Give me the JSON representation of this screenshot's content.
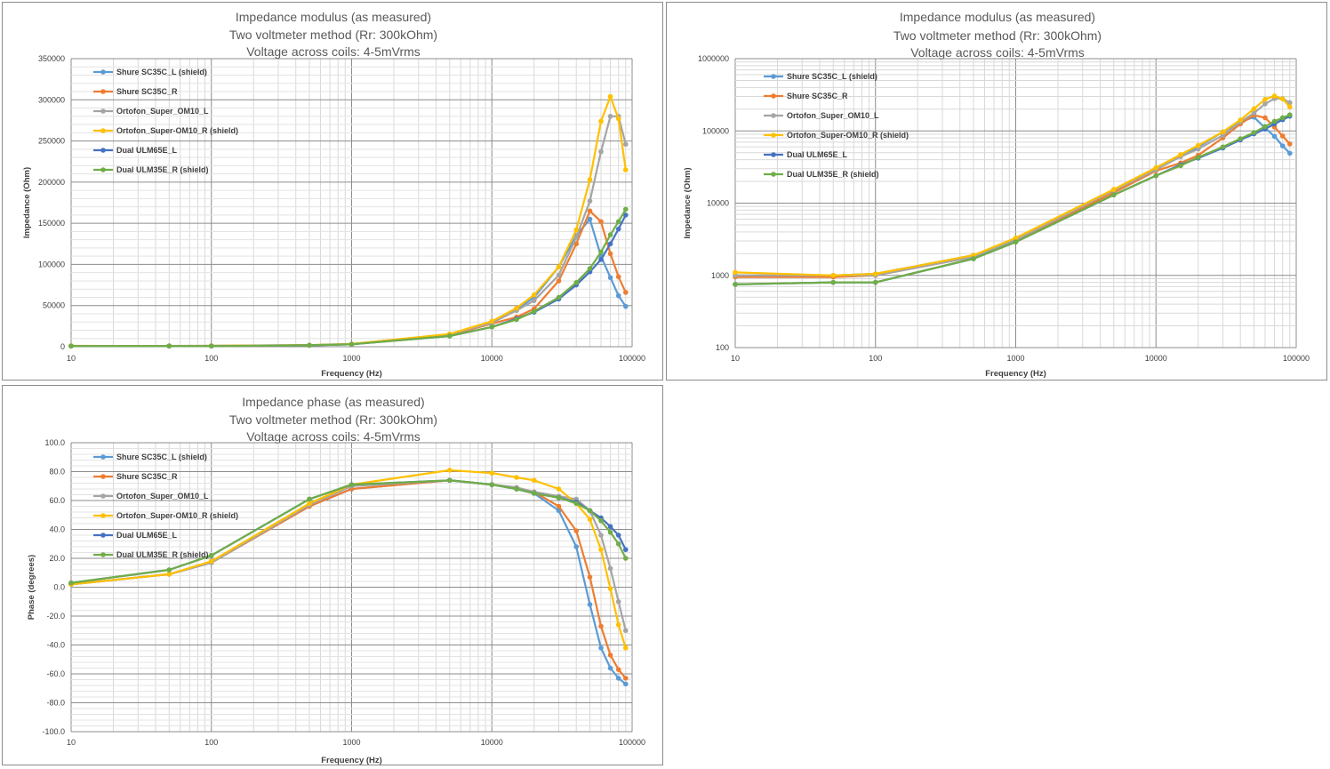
{
  "colors": {
    "Shure SC35C_L (shield)": "#5b9bd5",
    "Shure SC35C_R": "#ed7d31",
    "Ortofon_Super_OM10_L": "#a5a5a5",
    "Ortofon_Super-OM10_R (shield)": "#ffc000",
    "Dual ULM65E_L": "#4472c4",
    "Dual ULM35E_R (shield)": "#70ad47"
  },
  "chart_data": [
    {
      "type": "line",
      "title": [
        "Impedance modulus (as measured)",
        "Two voltmeter method (Rr: 300kOhm)",
        "Voltage across coils: 4-5mVrms"
      ],
      "xlabel": "Frequency (Hz)",
      "ylabel": "Impedance (Ohm)",
      "xscale": "log",
      "yscale": "linear",
      "xlim": [
        10,
        100000
      ],
      "ylim": [
        0,
        350000
      ],
      "xticks": [
        "10",
        "100",
        "1000",
        "10000",
        "100000"
      ],
      "yticks": [
        "0",
        "50000",
        "100000",
        "150000",
        "200000",
        "250000",
        "300000",
        "350000"
      ],
      "legend": "top-left",
      "grid": true,
      "x": [
        10,
        50,
        100,
        500,
        1000,
        5000,
        10000,
        15000,
        20000,
        30000,
        40000,
        50000,
        60000,
        70000,
        80000,
        90000
      ],
      "series": [
        {
          "name": "Shure SC35C_L (shield)",
          "values": [
            1000,
            1000,
            1050,
            1900,
            3200,
            15000,
            30000,
            45000,
            60000,
            97000,
            135000,
            155000,
            110000,
            84000,
            62000,
            49000
          ]
        },
        {
          "name": "Shure SC35C_R",
          "values": [
            950,
            950,
            1000,
            1800,
            3000,
            14000,
            28000,
            36000,
            46000,
            80000,
            125000,
            165000,
            152000,
            113000,
            85000,
            66000
          ]
        },
        {
          "name": "Ortofon_Super_OM10_L",
          "values": [
            1000,
            1000,
            1000,
            1800,
            3100,
            15000,
            29000,
            44000,
            56000,
            87000,
            133000,
            177000,
            237000,
            280000,
            280000,
            246000
          ]
        },
        {
          "name": "Ortofon_Super-OM10_R (shield)",
          "values": [
            1100,
            1000,
            1050,
            1900,
            3300,
            15500,
            31000,
            47000,
            63000,
            97000,
            142000,
            203000,
            274000,
            304000,
            277000,
            215000
          ]
        },
        {
          "name": "Dual ULM65E_L",
          "values": [
            750,
            800,
            800,
            1700,
            2900,
            13000,
            24000,
            34000,
            42000,
            58000,
            75000,
            91000,
            106000,
            125000,
            143000,
            160000
          ]
        },
        {
          "name": "Dual ULM35E_R (shield)",
          "values": [
            750,
            800,
            800,
            1700,
            2900,
            13000,
            24000,
            33000,
            43000,
            60000,
            78000,
            95000,
            115000,
            136000,
            152000,
            167000
          ]
        }
      ]
    },
    {
      "type": "line",
      "title": [
        "Impedance modulus (as measured)",
        "Two voltmeter method (Rr: 300kOhm)",
        "Voltage across coils: 4-5mVrms"
      ],
      "xlabel": "Frequency (Hz)",
      "ylabel": "Impedance (Ohm)",
      "xscale": "log",
      "yscale": "log",
      "xlim": [
        10,
        100000
      ],
      "ylim": [
        100,
        1000000
      ],
      "xticks": [
        "10",
        "100",
        "1000",
        "10000",
        "100000"
      ],
      "yticks": [
        "100",
        "1000",
        "10000",
        "100000",
        "1000000"
      ],
      "legend": "top-left",
      "grid": true,
      "x": [
        10,
        50,
        100,
        500,
        1000,
        5000,
        10000,
        15000,
        20000,
        30000,
        40000,
        50000,
        60000,
        70000,
        80000,
        90000
      ],
      "series": [
        {
          "name": "Shure SC35C_L (shield)",
          "values": [
            1000,
            1000,
            1050,
            1900,
            3200,
            15000,
            30000,
            45000,
            60000,
            97000,
            135000,
            155000,
            110000,
            84000,
            62000,
            49000
          ]
        },
        {
          "name": "Shure SC35C_R",
          "values": [
            950,
            950,
            1000,
            1800,
            3000,
            14000,
            28000,
            36000,
            46000,
            80000,
            125000,
            165000,
            152000,
            113000,
            85000,
            66000
          ]
        },
        {
          "name": "Ortofon_Super_OM10_L",
          "values": [
            1000,
            1000,
            1000,
            1800,
            3100,
            15000,
            29000,
            44000,
            56000,
            87000,
            133000,
            177000,
            237000,
            280000,
            280000,
            246000
          ]
        },
        {
          "name": "Ortofon_Super-OM10_R (shield)",
          "values": [
            1100,
            1000,
            1050,
            1900,
            3300,
            15500,
            31000,
            47000,
            63000,
            97000,
            142000,
            203000,
            274000,
            304000,
            277000,
            215000
          ]
        },
        {
          "name": "Dual ULM65E_L",
          "values": [
            750,
            800,
            800,
            1700,
            2900,
            13000,
            24000,
            34000,
            42000,
            58000,
            75000,
            91000,
            106000,
            125000,
            143000,
            160000
          ]
        },
        {
          "name": "Dual ULM35E_R (shield)",
          "values": [
            750,
            800,
            800,
            1700,
            2900,
            13000,
            24000,
            33000,
            43000,
            60000,
            78000,
            95000,
            115000,
            136000,
            152000,
            167000
          ]
        }
      ]
    },
    {
      "type": "line",
      "title": [
        "Impedance phase (as measured)",
        "Two voltmeter method (Rr: 300kOhm)",
        "Voltage across coils: 4-5mVrms"
      ],
      "xlabel": "Frequency (Hz)",
      "ylabel": "Phase (degrees)",
      "xscale": "log",
      "yscale": "linear",
      "xlim": [
        10,
        100000
      ],
      "ylim": [
        -100,
        100
      ],
      "xticks": [
        "10",
        "100",
        "1000",
        "10000",
        "100000"
      ],
      "yticks": [
        "-100.0",
        "-80.0",
        "-60.0",
        "-40.0",
        "-20.0",
        "0.0",
        "20.0",
        "40.0",
        "60.0",
        "80.0",
        "100.0"
      ],
      "legend": "top-left",
      "grid": true,
      "x": [
        10,
        50,
        100,
        500,
        1000,
        5000,
        10000,
        15000,
        20000,
        30000,
        40000,
        50000,
        60000,
        70000,
        80000,
        90000
      ],
      "series": [
        {
          "name": "Shure SC35C_L (shield)",
          "values": [
            2,
            9,
            17,
            56,
            68,
            74,
            71,
            68,
            65,
            53,
            28,
            -12,
            -42,
            -56,
            -63,
            -67
          ]
        },
        {
          "name": "Shure SC35C_R",
          "values": [
            2,
            9,
            17,
            56,
            68,
            74,
            71,
            69,
            66,
            56,
            39,
            7,
            -27,
            -47,
            -57,
            -63
          ]
        },
        {
          "name": "Ortofon_Super_OM10_L",
          "values": [
            2,
            9,
            17,
            57,
            70,
            74,
            71,
            69,
            66,
            63,
            61,
            53,
            36,
            13,
            -10,
            -30
          ]
        },
        {
          "name": "Ortofon_Super-OM10_R (shield)",
          "values": [
            2,
            9,
            18,
            58,
            71,
            81,
            79,
            76,
            74,
            68,
            58,
            47,
            26,
            -1,
            -26,
            -42
          ]
        },
        {
          "name": "Dual ULM65E_L",
          "values": [
            3,
            12,
            22,
            61,
            71,
            74,
            71,
            68,
            65,
            62,
            59,
            53,
            48,
            42,
            36,
            26
          ]
        },
        {
          "name": "Dual ULM35E_R (shield)",
          "values": [
            3,
            12,
            22,
            61,
            71,
            74,
            71,
            68,
            65,
            62,
            58,
            53,
            46,
            38,
            30,
            20
          ]
        }
      ]
    }
  ]
}
